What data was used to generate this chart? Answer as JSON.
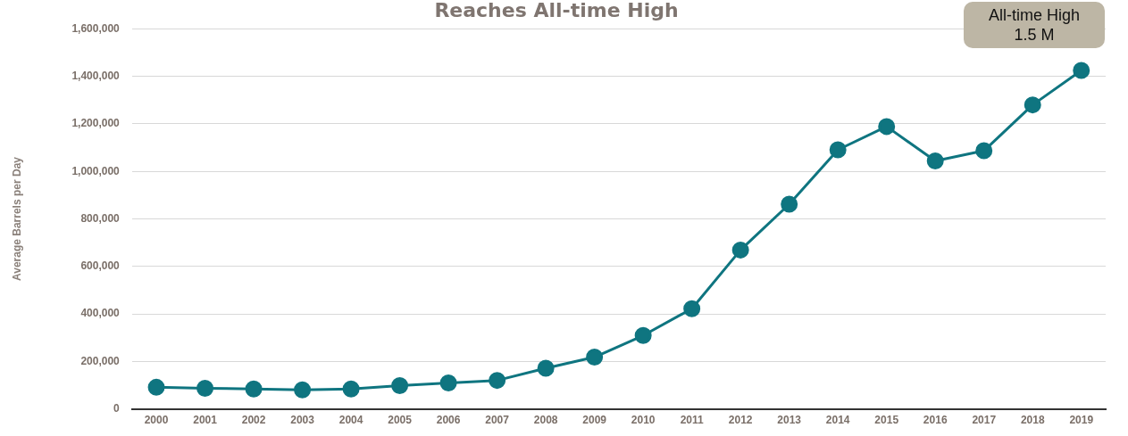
{
  "chart_data": {
    "type": "line",
    "title": "Reaches All-time High",
    "ylabel": "Average Barrels per Day",
    "categories": [
      "2000",
      "2001",
      "2002",
      "2003",
      "2004",
      "2005",
      "2006",
      "2007",
      "2008",
      "2009",
      "2010",
      "2011",
      "2012",
      "2013",
      "2014",
      "2015",
      "2016",
      "2017",
      "2018",
      "2019"
    ],
    "series": [
      {
        "color": "#0f7580",
        "values": [
          91000,
          87000,
          84000,
          80000,
          84000,
          98000,
          109000,
          120000,
          171000,
          218000,
          309000,
          422000,
          669000,
          862000,
          1091000,
          1189000,
          1044000,
          1087000,
          1280000,
          1425000
        ]
      }
    ],
    "ylim": [
      0,
      1600000
    ],
    "yticks": [
      0,
      {
        "value": 200000,
        "label": "200,000"
      },
      {
        "value": 400000,
        "label": "400,000"
      },
      {
        "value": 600000,
        "label": "600,000"
      },
      {
        "value": 800000,
        "label": "800,000"
      },
      {
        "value": 1000000,
        "label": "1,000,000"
      },
      {
        "value": 1200000,
        "label": "1,200,000"
      },
      {
        "value": 1400000,
        "label": "1,400,000"
      },
      {
        "value": 1600000,
        "label": "1,600,000"
      }
    ],
    "grid": "y",
    "legend": false,
    "marker": "circle",
    "line_style": "solid",
    "annotations": [
      "All-time High\n1.5 M"
    ]
  }
}
